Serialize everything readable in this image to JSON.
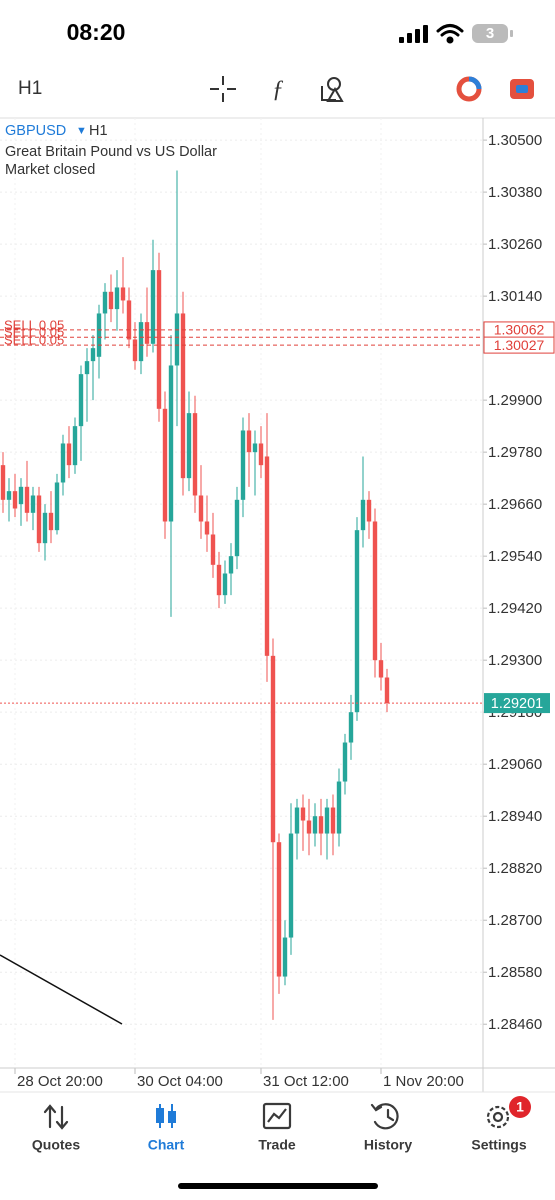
{
  "status_bar": {
    "time": "08:20",
    "battery": "3"
  },
  "toolbar": {
    "timeframe": "H1"
  },
  "chart_data": {
    "type": "candlestick",
    "symbol": "GBPUSD",
    "timeframe": "H1",
    "subtitle": "Great Britain Pound vs US Dollar",
    "status": "Market closed",
    "up_color": "#26a69a",
    "down_color": "#ef5350",
    "open": [
      1.2975,
      1.2967,
      1.2969,
      1.2966,
      1.297,
      1.2964,
      1.2968,
      1.2957,
      1.2964,
      1.296,
      1.2971,
      1.298,
      1.2975,
      1.2984,
      1.2996,
      1.2999,
      1.3,
      1.301,
      1.3015,
      1.3011,
      1.3016,
      1.3013,
      1.3004,
      1.2999,
      1.3008,
      1.3003,
      1.302,
      1.2988,
      1.2962,
      1.2998,
      1.301,
      1.2972,
      1.2987,
      1.2968,
      1.2962,
      1.2959,
      1.2952,
      1.2945,
      1.295,
      1.2954,
      1.2967,
      1.2983,
      1.2978,
      1.298,
      1.2977,
      1.2931,
      1.2888,
      1.2857,
      1.2866,
      1.289,
      1.2896,
      1.2893,
      1.289,
      1.2894,
      1.289,
      1.2896,
      1.289,
      1.2902,
      1.2911,
      1.2918,
      1.296,
      1.2967,
      1.2962,
      1.293,
      1.2926
    ],
    "high": [
      1.2978,
      1.2972,
      1.2973,
      1.2972,
      1.2976,
      1.297,
      1.297,
      1.2966,
      1.2969,
      1.2973,
      1.2982,
      1.2984,
      1.2986,
      1.2998,
      1.3002,
      1.3005,
      1.3012,
      1.3017,
      1.3019,
      1.302,
      1.3023,
      1.3016,
      1.3008,
      1.301,
      1.3016,
      1.3027,
      1.3024,
      1.2992,
      1.3005,
      1.3043,
      1.3015,
      1.2992,
      1.2991,
      1.2975,
      1.2968,
      1.2964,
      1.2955,
      1.2953,
      1.2957,
      1.297,
      1.2986,
      1.2987,
      1.2983,
      1.2984,
      1.2987,
      1.2935,
      1.289,
      1.287,
      1.2897,
      1.2898,
      1.2899,
      1.2898,
      1.2897,
      1.2898,
      1.2898,
      1.2899,
      1.2905,
      1.2913,
      1.2922,
      1.2963,
      1.2977,
      1.2969,
      1.2965,
      1.2934,
      1.2928
    ],
    "low": [
      1.2964,
      1.2962,
      1.2963,
      1.2961,
      1.2962,
      1.296,
      1.2955,
      1.2953,
      1.2957,
      1.2959,
      1.2968,
      1.2972,
      1.2973,
      1.2976,
      1.2985,
      1.299,
      1.2995,
      1.3004,
      1.3008,
      1.3006,
      1.301,
      1.3002,
      1.2997,
      1.2996,
      1.3,
      1.3001,
      1.2985,
      1.2958,
      1.294,
      1.2984,
      1.2968,
      1.2969,
      1.2964,
      1.2958,
      1.2955,
      1.2949,
      1.2942,
      1.2943,
      1.2945,
      1.2951,
      1.2963,
      1.297,
      1.2968,
      1.2972,
      1.2925,
      1.2847,
      1.2853,
      1.2855,
      1.2862,
      1.2884,
      1.2886,
      1.2885,
      1.2887,
      1.2885,
      1.2884,
      1.2885,
      1.2887,
      1.2899,
      1.2907,
      1.2916,
      1.2956,
      1.2958,
      1.2926,
      1.2923,
      1.2918
    ],
    "close": [
      1.2967,
      1.2969,
      1.2965,
      1.297,
      1.2964,
      1.2968,
      1.2957,
      1.2964,
      1.296,
      1.2971,
      1.298,
      1.2975,
      1.2984,
      1.2996,
      1.2999,
      1.3002,
      1.301,
      1.3015,
      1.3011,
      1.3016,
      1.3013,
      1.3004,
      1.2999,
      1.3008,
      1.3003,
      1.302,
      1.2988,
      1.2962,
      1.2998,
      1.301,
      1.2972,
      1.2987,
      1.2968,
      1.2962,
      1.2959,
      1.2952,
      1.2945,
      1.295,
      1.2954,
      1.2967,
      1.2983,
      1.2978,
      1.298,
      1.2975,
      1.2931,
      1.2888,
      1.2857,
      1.2866,
      1.289,
      1.2896,
      1.2893,
      1.289,
      1.2894,
      1.289,
      1.2896,
      1.289,
      1.2902,
      1.2911,
      1.2918,
      1.296,
      1.2967,
      1.2962,
      1.293,
      1.2926,
      1.29201
    ],
    "xlim": [
      -0.5,
      80
    ],
    "xticks": [
      {
        "value": 2,
        "label": "28 Oct 20:00"
      },
      {
        "value": 22,
        "label": "30 Oct 04:00"
      },
      {
        "value": 43,
        "label": "31 Oct 12:00"
      },
      {
        "value": 63,
        "label": "1 Nov 20:00"
      }
    ],
    "ylim": [
      1.28359,
      1.30551
    ],
    "yticks": [
      {
        "value": 1.305,
        "label": "1.30500"
      },
      {
        "value": 1.3038,
        "label": "1.30380"
      },
      {
        "value": 1.3026,
        "label": "1.30260"
      },
      {
        "value": 1.3014,
        "label": "1.30140"
      },
      {
        "value": 1.299,
        "label": "1.29900"
      },
      {
        "value": 1.2978,
        "label": "1.29780"
      },
      {
        "value": 1.2966,
        "label": "1.29660"
      },
      {
        "value": 1.2954,
        "label": "1.29540"
      },
      {
        "value": 1.2942,
        "label": "1.29420"
      },
      {
        "value": 1.293,
        "label": "1.29300"
      },
      {
        "value": 1.2918,
        "label": "1.29180"
      },
      {
        "value": 1.2906,
        "label": "1.29060"
      },
      {
        "value": 1.2894,
        "label": "1.28940"
      },
      {
        "value": 1.2882,
        "label": "1.28820"
      },
      {
        "value": 1.287,
        "label": "1.28700"
      },
      {
        "value": 1.2858,
        "label": "1.28580"
      },
      {
        "value": 1.2846,
        "label": "1.28460"
      }
    ],
    "grid": true,
    "orders": [
      {
        "label": "SELL 0.05",
        "price": 1.30045
      },
      {
        "label": "SELL 0.05",
        "price": 1.30062
      },
      {
        "label": "SELL 0.05",
        "price": 1.30027
      }
    ],
    "order_color": "#e0403a",
    "current_price": 1.29201
  },
  "tabs": [
    {
      "label": "Quotes"
    },
    {
      "label": "Chart"
    },
    {
      "label": "Trade"
    },
    {
      "label": "History"
    },
    {
      "label": "Settings",
      "badge": "1"
    }
  ]
}
